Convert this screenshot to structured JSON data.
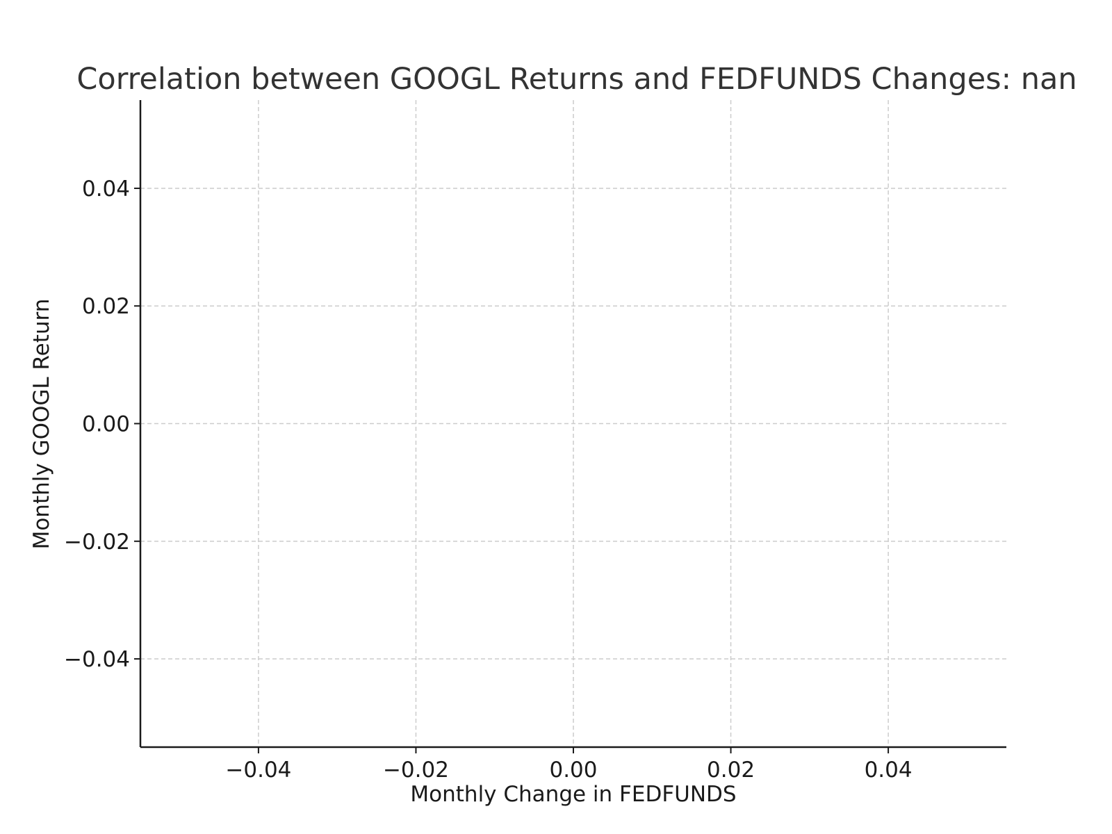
{
  "chart_data": {
    "type": "scatter",
    "title": "Correlation between GOOGL Returns and FEDFUNDS Changes: nan",
    "xlabel": "Monthly Change in FEDFUNDS",
    "ylabel": "Monthly GOOGL Return",
    "xlim": [
      -0.055,
      0.055
    ],
    "ylim": [
      -0.055,
      0.055
    ],
    "xticks": [
      -0.04,
      -0.02,
      0.0,
      0.02,
      0.04
    ],
    "xtick_labels": [
      "−0.04",
      "−0.02",
      "0.00",
      "0.02",
      "0.04"
    ],
    "yticks": [
      0.04,
      0.02,
      0.0,
      -0.02,
      -0.04
    ],
    "ytick_labels": [
      "0.04",
      "0.02",
      "0.00",
      "−0.02",
      "−0.04"
    ],
    "grid": true,
    "series": [
      {
        "x": [],
        "y": []
      }
    ]
  }
}
